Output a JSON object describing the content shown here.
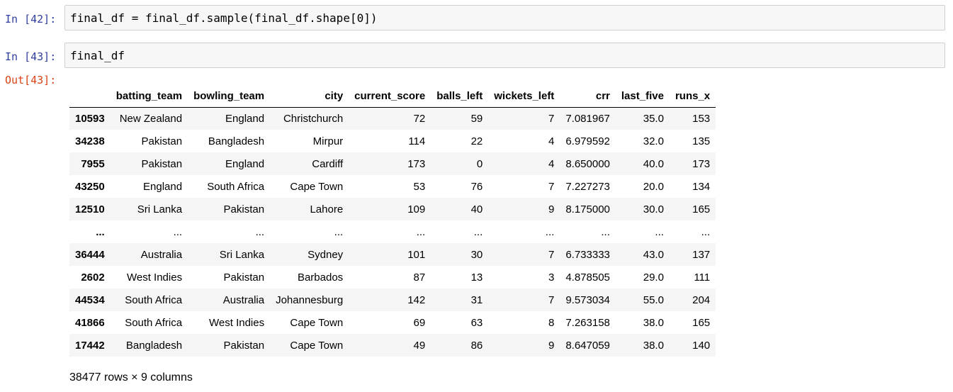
{
  "cells": [
    {
      "prompt": "In [42]:",
      "code": "final_df = final_df.sample(final_df.shape[0])"
    },
    {
      "prompt": "In [43]:",
      "code": "final_df"
    }
  ],
  "output": {
    "prompt": "Out[43]:",
    "columns": [
      "",
      "batting_team",
      "bowling_team",
      "city",
      "current_score",
      "balls_left",
      "wickets_left",
      "crr",
      "last_five",
      "runs_x"
    ],
    "rows": [
      [
        "10593",
        "New Zealand",
        "England",
        "Christchurch",
        "72",
        "59",
        "7",
        "7.081967",
        "35.0",
        "153"
      ],
      [
        "34238",
        "Pakistan",
        "Bangladesh",
        "Mirpur",
        "114",
        "22",
        "4",
        "6.979592",
        "32.0",
        "135"
      ],
      [
        "7955",
        "Pakistan",
        "England",
        "Cardiff",
        "173",
        "0",
        "4",
        "8.650000",
        "40.0",
        "173"
      ],
      [
        "43250",
        "England",
        "South Africa",
        "Cape Town",
        "53",
        "76",
        "7",
        "7.227273",
        "20.0",
        "134"
      ],
      [
        "12510",
        "Sri Lanka",
        "Pakistan",
        "Lahore",
        "109",
        "40",
        "9",
        "8.175000",
        "30.0",
        "165"
      ],
      [
        "...",
        "...",
        "...",
        "...",
        "...",
        "...",
        "...",
        "...",
        "...",
        "..."
      ],
      [
        "36444",
        "Australia",
        "Sri Lanka",
        "Sydney",
        "101",
        "30",
        "7",
        "6.733333",
        "43.0",
        "137"
      ],
      [
        "2602",
        "West Indies",
        "Pakistan",
        "Barbados",
        "87",
        "13",
        "3",
        "4.878505",
        "29.0",
        "111"
      ],
      [
        "44534",
        "South Africa",
        "Australia",
        "Johannesburg",
        "142",
        "31",
        "7",
        "9.573034",
        "55.0",
        "204"
      ],
      [
        "41866",
        "South Africa",
        "West Indies",
        "Cape Town",
        "69",
        "63",
        "8",
        "7.263158",
        "38.0",
        "165"
      ],
      [
        "17442",
        "Bangladesh",
        "Pakistan",
        "Cape Town",
        "49",
        "86",
        "9",
        "8.647059",
        "38.0",
        "140"
      ]
    ],
    "footer": "38477 rows × 9 columns"
  }
}
